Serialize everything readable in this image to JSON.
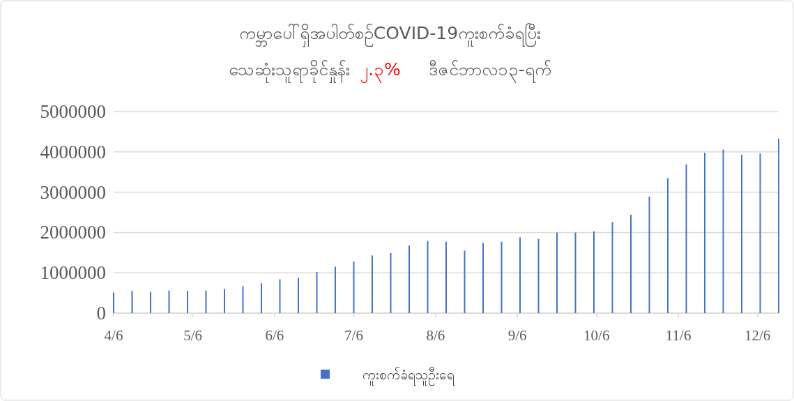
{
  "chart_data": {
    "type": "bar",
    "title": "ကမ္ဘာပေါ်ရှိအပါတ်စဉ်COVID-19ကူးစက်ခံရပြီး",
    "subtitle": "သေဆုံးသူရာခိုင်နှုန်း",
    "annotations": [
      "၂.၃%",
      "ဒီဇင်ဘာလ၁၃-ရက်"
    ],
    "x": [
      "--04-06",
      "--04-13",
      "--04-20",
      "--04-27",
      "--05-04",
      "--05-11",
      "--05-18",
      "--05-25",
      "--06-01",
      "--06-08",
      "--06-15",
      "--06-22",
      "--06-29",
      "--07-06",
      "--07-13",
      "--07-20",
      "--07-27",
      "--08-03",
      "--08-10",
      "--08-17",
      "--08-24",
      "--08-31",
      "--09-07",
      "--09-14",
      "--09-21",
      "--09-28",
      "--10-05",
      "--10-12",
      "--10-19",
      "--10-26",
      "--11-02",
      "--11-09",
      "--11-16",
      "--11-23",
      "--11-30",
      "--12-07",
      "--12-14"
    ],
    "series": [
      {
        "name": "ကူးစက်ခံရသူဦးရေ",
        "color": "#4472c4",
        "values": [
          510000,
          550000,
          530000,
          560000,
          550000,
          560000,
          600000,
          670000,
          740000,
          840000,
          880000,
          1020000,
          1150000,
          1280000,
          1430000,
          1490000,
          1680000,
          1790000,
          1770000,
          1550000,
          1740000,
          1770000,
          1880000,
          1840000,
          2000000,
          2000000,
          2030000,
          2260000,
          2440000,
          2890000,
          3350000,
          3690000,
          3980000,
          4060000,
          3930000,
          3960000,
          4330000
        ]
      }
    ],
    "xlim": [
      "--04-06",
      "--12-14"
    ],
    "xticks": [
      {
        "value": "--04-06",
        "label": "4/6"
      },
      {
        "value": "--05-06",
        "label": "5/6"
      },
      {
        "value": "--06-06",
        "label": "6/6"
      },
      {
        "value": "--07-06",
        "label": "7/6"
      },
      {
        "value": "--08-06",
        "label": "8/6"
      },
      {
        "value": "--09-06",
        "label": "9/6"
      },
      {
        "value": "--10-06",
        "label": "10/6"
      },
      {
        "value": "--11-06",
        "label": "11/6"
      },
      {
        "value": "--12-06",
        "label": "12/6"
      }
    ],
    "ylim": [
      0,
      5000000
    ],
    "yticks": [
      0,
      1000000,
      2000000,
      3000000,
      4000000,
      5000000
    ],
    "grid": "y",
    "legend": "bottom"
  }
}
